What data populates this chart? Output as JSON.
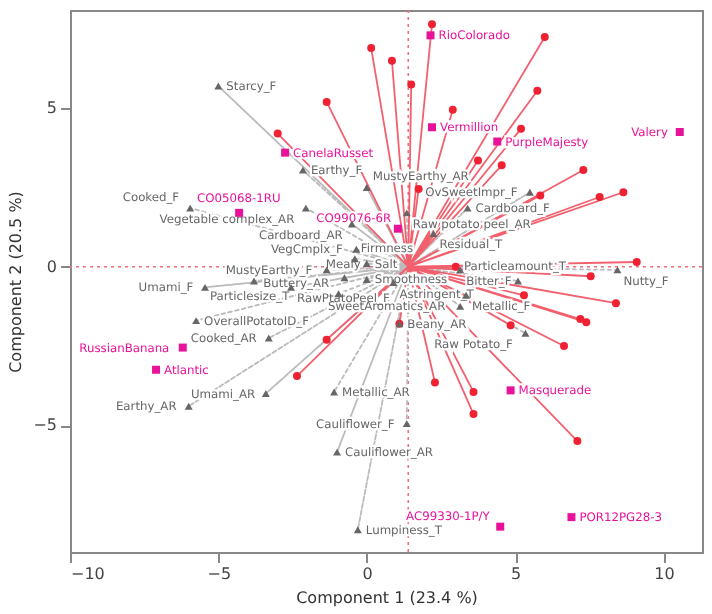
{
  "chart_data": {
    "type": "scatter",
    "xlabel": "Component 1 (23.4 %)",
    "ylabel": "Component 2 (20.5 %)",
    "xlim": [
      -10,
      11.3
    ],
    "ylim": [
      -9,
      8.1
    ],
    "xticks": [
      -10,
      -5,
      0,
      5,
      10
    ],
    "yticks": [
      -5,
      0,
      5
    ],
    "grid": false,
    "ref_lines": [
      {
        "axis": "y",
        "value": 0,
        "color": "#f07080",
        "line_style": "dotted"
      },
      {
        "axis": "x",
        "value": 1.4,
        "color": "#f07080",
        "line_style": "dotted"
      }
    ],
    "series": [
      {
        "type": "line",
        "color": "#bbbbbb",
        "line_style": "dotted",
        "marker": "none",
        "x": [
          1.4,
          -5.0,
          1.4,
          -2.15,
          1.4,
          0.0,
          1.4,
          -2.05,
          1.4,
          -5.95,
          1.4,
          1.35,
          1.4,
          -0.5,
          1.4,
          3.4,
          1.4,
          5.5,
          1.4,
          2.25,
          1.4,
          -0.35,
          1.4,
          -0.4,
          1.4,
          0.0,
          1.4,
          -1.35,
          1.4,
          -3.8,
          1.4,
          -5.45,
          1.4,
          -0.75,
          1.4,
          0.0,
          1.4,
          -2.55,
          1.4,
          -0.95,
          1.4,
          -5.75,
          1.4,
          -3.3,
          1.4,
          -3.4,
          1.4,
          -6.0,
          1.4,
          -1.1,
          1.4,
          -1.0,
          1.4,
          -0.3,
          1.4,
          1.35,
          1.4,
          1.1,
          1.4,
          0.9,
          1.4,
          3.35,
          1.4,
          3.15,
          1.4,
          5.35,
          1.4,
          5.1,
          1.4,
          3.15,
          1.4,
          8.45
        ],
        "values": [
          0,
          5.7,
          0,
          3.05,
          0,
          2.5,
          0,
          1.85,
          0,
          1.85,
          0,
          1.7,
          0,
          1.35,
          0,
          1.85,
          0,
          2.35,
          0,
          1.05,
          0,
          0.55,
          0,
          0.25,
          0,
          0.1,
          0,
          -0.1,
          0,
          -0.45,
          0,
          -0.65,
          0,
          -0.35,
          0,
          -0.4,
          0,
          -0.65,
          0,
          -0.85,
          0,
          -1.7,
          0,
          -2.25,
          0,
          -4.0,
          0,
          -4.4,
          0,
          -3.95,
          0,
          -5.85,
          0,
          -8.3,
          0,
          -4.95,
          0,
          -1.8,
          0,
          -0.5,
          0,
          -0.9,
          0,
          -1.25,
          0,
          -2.1,
          0,
          -0.45,
          0,
          -0.1,
          0,
          -0.1
        ]
      },
      {
        "type": "line",
        "color": "#f2606e",
        "line_style": "solid",
        "marker": "none",
        "x": [
          1.4,
          2.2,
          1.4,
          0.15,
          1.4,
          0.85,
          1.4,
          6.0,
          1.4,
          1.5,
          1.4,
          5.75,
          1.4,
          2.9,
          1.4,
          5.2,
          1.4,
          3.75,
          1.4,
          4.55,
          1.4,
          7.3,
          1.4,
          1.75,
          1.4,
          8.65,
          1.4,
          7.85,
          1.4,
          5.85,
          1.4,
          9.1,
          1.4,
          3.0,
          1.4,
          7.55,
          1.4,
          -1.35,
          1.4,
          -3.0,
          1.4,
          -1.35,
          1.4,
          -2.35,
          1.4,
          8.4,
          1.4,
          5.3,
          1.4,
          7.2,
          1.4,
          7.4,
          1.4,
          4.85,
          1.4,
          6.65,
          1.4,
          2.3,
          1.4,
          3.6,
          1.4,
          3.6,
          1.4,
          7.1,
          1.4,
          1.1
        ],
        "values": [
          0,
          7.65,
          0,
          6.9,
          0,
          6.5,
          0,
          7.25,
          0,
          5.75,
          0,
          5.55,
          0,
          4.95,
          0,
          4.35,
          0,
          3.35,
          0,
          3.2,
          0,
          3.05,
          0,
          2.45,
          0,
          2.35,
          0,
          2.2,
          0,
          2.25,
          0,
          0.15,
          0,
          0.0,
          0,
          -0.3,
          0,
          5.2,
          0,
          4.2,
          0,
          -2.3,
          0,
          -3.45,
          0,
          -1.15,
          0,
          -0.9,
          0,
          -1.65,
          0,
          -1.75,
          0,
          -1.85,
          0,
          -2.5,
          0,
          -3.65,
          0,
          -3.95,
          0,
          -4.65,
          0,
          -5.5,
          0,
          -1.8
        ]
      },
      {
        "color": "#ee2233",
        "marker": "circle",
        "x": [
          2.2,
          0.15,
          0.85,
          6.0,
          1.5,
          5.75,
          2.9,
          5.2,
          3.75,
          4.55,
          7.3,
          1.75,
          8.65,
          7.85,
          5.85,
          9.1,
          3.0,
          7.55,
          -1.35,
          -3.0,
          -1.35,
          -2.35,
          8.4,
          5.3,
          7.2,
          7.4,
          4.85,
          6.65,
          2.3,
          3.6,
          3.6,
          7.1,
          1.1
        ],
        "values": [
          7.65,
          6.9,
          6.5,
          7.25,
          5.75,
          5.55,
          4.95,
          4.35,
          3.35,
          3.2,
          3.05,
          2.45,
          2.35,
          2.2,
          2.25,
          0.15,
          0.0,
          -0.3,
          5.2,
          4.2,
          -2.3,
          -3.45,
          -1.15,
          -0.9,
          -1.65,
          -1.75,
          -1.85,
          -2.5,
          -3.65,
          -3.95,
          -4.65,
          -5.5,
          -1.8
        ]
      },
      {
        "color": "#666666",
        "marker": "triangle",
        "x": [
          -5.0,
          -2.15,
          0.0,
          -2.05,
          -5.95,
          1.35,
          -0.5,
          3.4,
          5.5,
          2.25,
          -0.35,
          -0.4,
          0.0,
          -1.35,
          -3.8,
          -5.45,
          -0.75,
          0.0,
          -2.55,
          -0.95,
          -5.75,
          -3.3,
          -3.4,
          -6.0,
          -1.1,
          -1.0,
          -0.3,
          1.35,
          1.1,
          0.9,
          3.35,
          3.15,
          5.35,
          5.1,
          3.15,
          8.45
        ],
        "values": [
          5.7,
          3.05,
          2.5,
          1.85,
          1.85,
          1.7,
          1.35,
          1.85,
          2.35,
          1.05,
          0.55,
          0.25,
          0.1,
          -0.1,
          -0.45,
          -0.65,
          -0.35,
          -0.4,
          -0.65,
          -0.85,
          -1.7,
          -2.25,
          -4.0,
          -4.4,
          -3.95,
          -5.85,
          -8.3,
          -4.95,
          -1.8,
          -0.5,
          -0.9,
          -1.25,
          -2.1,
          -0.45,
          -0.1,
          -0.1
        ],
        "value_labels": [
          "Starcy_F",
          "Earthy_F",
          "MustyEarthy_AR",
          "Vegetable complex_AR",
          "Cooked_F",
          "Raw potato peel_AR",
          "Cardboard_AR",
          "Cardboard_F",
          "OvSweetImpr_F",
          "Residual_T",
          "VegCmplx_F",
          "Firmness",
          "Salt",
          "MustyEarthy_F",
          "Particlesize_T",
          "Umami_F",
          "Mealy",
          "Smoothness",
          "RawPtatoPeel_F",
          "Buttery_AR",
          "OverallPotatoID_F",
          "Cooked_AR",
          "Umami_AR",
          "Earthy_AR",
          "Metallic_AR",
          "Cauliflower_AR",
          "Lumpiness_T",
          "Cauliflower_F",
          "Beany_AR",
          "Astringent_T",
          "Metallic_F",
          "SweetAromatics_AR",
          "Raw Potato_F",
          "Particleamount_T",
          "Bitter_F",
          "Nutty_F"
        ]
      },
      {
        "color": "#e8119a",
        "marker": "square",
        "x": [
          2.15,
          2.2,
          4.4,
          10.55,
          1.05,
          -2.75,
          -4.3,
          -6.2,
          -7.1,
          4.85,
          4.5,
          6.9
        ],
        "values": [
          7.3,
          4.4,
          3.95,
          4.25,
          1.2,
          3.6,
          1.7,
          -2.55,
          -3.25,
          -3.9,
          -8.2,
          -7.9
        ],
        "value_labels": [
          "RioColorado",
          "Vermillion",
          "PurpleMajesty",
          "Valery",
          "CO99076-6R",
          "CanelaRusset",
          "CO05068-1RU",
          "RussianBanana",
          "Atlantic",
          "Masquerade",
          "AC99330-1P/Y",
          "POR12PG28-3"
        ]
      }
    ]
  }
}
